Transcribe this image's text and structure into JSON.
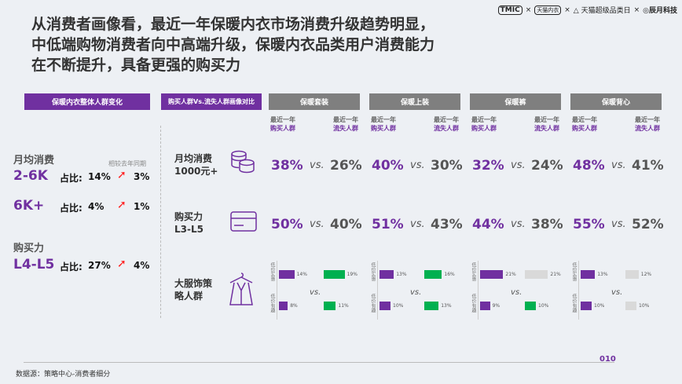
{
  "title": [
    "从消费者画像看，最近一年保暖内衣市场消费升级趋势明显，",
    "中低端购物消费者向中高端升级，保暖内衣品类用户消费能力",
    "在不断提升，具备更强的购买力"
  ],
  "logos": [
    "TMIC",
    "×",
    "天猫内衣",
    "×",
    "△ 天猫超级品类日",
    "×",
    "◎辰月科技"
  ],
  "left": {
    "header": "保暖内衣整体人群变化",
    "compare_note": "相较去年同期",
    "items": [
      {
        "label": "月均消费",
        "value": "2-6K",
        "ratio_label": "占比:",
        "ratio": "14%",
        "change": "3%"
      },
      {
        "label": "",
        "value": "6K+",
        "ratio_label": "占比:",
        "ratio": "4%",
        "change": "1%"
      },
      {
        "label": "购买力",
        "value": "L4-L5",
        "ratio_label": "占比:",
        "ratio": "27%",
        "change": "4%"
      }
    ]
  },
  "right": {
    "header": "购买人群Vs.流失人群画像对比",
    "sub_a": "最近一年",
    "sub_buy": "购买人群",
    "sub_lost": "流失人群",
    "vs": "vs.",
    "rows": [
      {
        "label1": "月均消费",
        "label2": "1000元+",
        "icon": "coins-icon"
      },
      {
        "label1": "购买力",
        "label2": "L3-L5",
        "icon": "credit-card-icon"
      },
      {
        "label1": "大服饰策",
        "label2": "略人群",
        "icon": "garment-icon"
      }
    ],
    "bar_labels": [
      "低价实惠",
      "低价有趣"
    ],
    "colors": {
      "purple": "#7030a0",
      "green": "#00b050",
      "gray": "#d9d9d9"
    },
    "categories": [
      {
        "name": "保暖套装",
        "spend": [
          "38%",
          "26%"
        ],
        "power": [
          "50%",
          "40%"
        ],
        "bars": [
          {
            "buy": 14,
            "lost": 19,
            "lost_color": "green"
          },
          {
            "buy": 8,
            "lost": 11,
            "lost_color": "green"
          }
        ]
      },
      {
        "name": "保暖上装",
        "spend": [
          "40%",
          "30%"
        ],
        "power": [
          "51%",
          "43%"
        ],
        "bars": [
          {
            "buy": 13,
            "lost": 16,
            "lost_color": "green"
          },
          {
            "buy": 10,
            "lost": 13,
            "lost_color": "green"
          }
        ]
      },
      {
        "name": "保暖裤",
        "spend": [
          "32%",
          "24%"
        ],
        "power": [
          "44%",
          "38%"
        ],
        "bars": [
          {
            "buy": 21,
            "lost": 21,
            "lost_color": "gray"
          },
          {
            "buy": 9,
            "lost": 10,
            "lost_color": "green"
          }
        ]
      },
      {
        "name": "保暖背心",
        "spend": [
          "48%",
          "41%"
        ],
        "power": [
          "55%",
          "52%"
        ],
        "bars": [
          {
            "buy": 13,
            "lost": 12,
            "lost_color": "gray"
          },
          {
            "buy": 10,
            "lost": 10,
            "lost_color": "gray"
          }
        ]
      }
    ]
  },
  "page_number": "010",
  "source": "数据源：策略中心-消费者细分"
}
